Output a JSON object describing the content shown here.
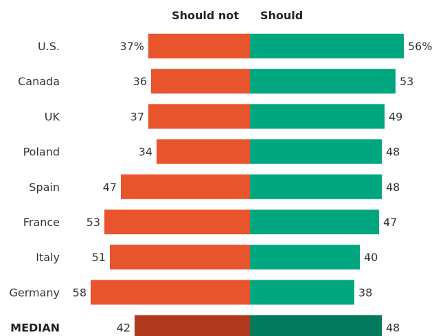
{
  "chart_data": {
    "type": "bar",
    "orientation": "horizontal-diverging",
    "categories": [
      "U.S.",
      "Canada",
      "UK",
      "Poland",
      "Spain",
      "France",
      "Italy",
      "Germany",
      "MEDIAN"
    ],
    "series": [
      {
        "name": "Should not",
        "values": [
          37,
          36,
          37,
          34,
          47,
          53,
          51,
          58,
          42
        ],
        "labels": [
          "37%",
          "36",
          "37",
          "34",
          "47",
          "53",
          "51",
          "58",
          "42"
        ],
        "color": "#e8542c",
        "median_color": "#b0381c"
      },
      {
        "name": "Should",
        "values": [
          56,
          53,
          49,
          48,
          48,
          47,
          40,
          38,
          48
        ],
        "labels": [
          "56%",
          "53",
          "49",
          "48",
          "48",
          "47",
          "40",
          "38",
          "48"
        ],
        "color": "#00a67e",
        "median_color": "#007a5c"
      }
    ],
    "highlight_category": "MEDIAN",
    "legend": "top-center"
  }
}
